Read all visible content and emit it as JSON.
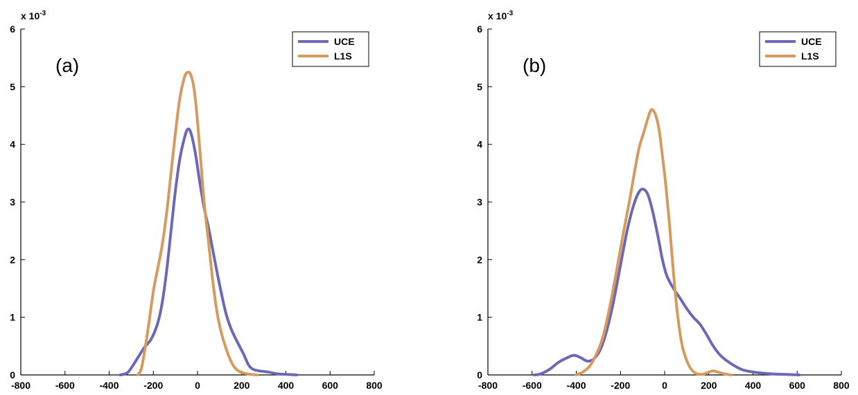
{
  "colors": {
    "UCE": "#6b68b8",
    "L1S": "#d59a5e",
    "axis": "#000000"
  },
  "chart_data": [
    {
      "type": "line",
      "panel_label": "(a)",
      "xlim": [
        -800,
        800
      ],
      "ylim": [
        0,
        6
      ],
      "x_ticks": [
        -800,
        -600,
        -400,
        -200,
        0,
        200,
        400,
        600,
        800
      ],
      "x_tick_labels": [
        "-800",
        "-600",
        "-400",
        "-200",
        "0",
        "200",
        "400",
        "600",
        "800"
      ],
      "y_ticks": [
        0,
        1,
        2,
        3,
        4,
        5,
        6
      ],
      "y_tick_labels": [
        "0",
        "1",
        "2",
        "3",
        "4",
        "5",
        "6"
      ],
      "y_exponent_base": "x 10",
      "y_exponent_power": "-3",
      "legend_position": "top-right",
      "grid": false,
      "series": [
        {
          "name": "UCE",
          "color": "#6b68b8",
          "points": [
            [
              -350,
              0
            ],
            [
              -320,
              0.03
            ],
            [
              -300,
              0.12
            ],
            [
              -270,
              0.3
            ],
            [
              -240,
              0.48
            ],
            [
              -210,
              0.62
            ],
            [
              -180,
              0.9
            ],
            [
              -160,
              1.25
            ],
            [
              -140,
              1.8
            ],
            [
              -120,
              2.5
            ],
            [
              -100,
              3.2
            ],
            [
              -80,
              3.75
            ],
            [
              -60,
              4.1
            ],
            [
              -45,
              4.26
            ],
            [
              -30,
              4.2
            ],
            [
              -10,
              3.85
            ],
            [
              10,
              3.35
            ],
            [
              30,
              2.9
            ],
            [
              50,
              2.55
            ],
            [
              70,
              2.15
            ],
            [
              90,
              1.75
            ],
            [
              110,
              1.38
            ],
            [
              130,
              1.05
            ],
            [
              150,
              0.82
            ],
            [
              170,
              0.65
            ],
            [
              190,
              0.5
            ],
            [
              210,
              0.35
            ],
            [
              230,
              0.18
            ],
            [
              250,
              0.1
            ],
            [
              280,
              0.07
            ],
            [
              320,
              0.05
            ],
            [
              360,
              0.02
            ],
            [
              400,
              0.01
            ],
            [
              450,
              0.0
            ]
          ]
        },
        {
          "name": "L1S",
          "color": "#d59a5e",
          "points": [
            [
              -270,
              0
            ],
            [
              -255,
              0.1
            ],
            [
              -240,
              0.4
            ],
            [
              -220,
              0.9
            ],
            [
              -200,
              1.45
            ],
            [
              -180,
              1.85
            ],
            [
              -160,
              2.25
            ],
            [
              -140,
              2.8
            ],
            [
              -120,
              3.5
            ],
            [
              -100,
              4.2
            ],
            [
              -80,
              4.8
            ],
            [
              -60,
              5.15
            ],
            [
              -45,
              5.25
            ],
            [
              -30,
              5.2
            ],
            [
              -15,
              4.95
            ],
            [
              0,
              4.4
            ],
            [
              15,
              3.7
            ],
            [
              30,
              3.0
            ],
            [
              50,
              2.3
            ],
            [
              70,
              1.6
            ],
            [
              90,
              1.05
            ],
            [
              110,
              0.7
            ],
            [
              130,
              0.45
            ],
            [
              150,
              0.25
            ],
            [
              170,
              0.12
            ],
            [
              190,
              0.06
            ],
            [
              210,
              0.03
            ],
            [
              240,
              0.01
            ],
            [
              270,
              0.0
            ]
          ]
        }
      ]
    },
    {
      "type": "line",
      "panel_label": "(b)",
      "xlim": [
        -800,
        800
      ],
      "ylim": [
        0,
        6
      ],
      "x_ticks": [
        -800,
        -600,
        -400,
        -200,
        0,
        200,
        400,
        600,
        800
      ],
      "x_tick_labels": [
        "-800",
        "-600",
        "-400",
        "-200",
        "0",
        "200",
        "400",
        "600",
        "800"
      ],
      "y_ticks": [
        0,
        1,
        2,
        3,
        4,
        5,
        6
      ],
      "y_tick_labels": [
        "0",
        "1",
        "2",
        "3",
        "4",
        "5",
        "6"
      ],
      "y_exponent_base": "x 10",
      "y_exponent_power": "-3",
      "legend_position": "top-right",
      "grid": false,
      "series": [
        {
          "name": "UCE",
          "color": "#6b68b8",
          "points": [
            [
              -590,
              0
            ],
            [
              -560,
              0.02
            ],
            [
              -520,
              0.1
            ],
            [
              -480,
              0.22
            ],
            [
              -440,
              0.3
            ],
            [
              -410,
              0.34
            ],
            [
              -380,
              0.3
            ],
            [
              -350,
              0.24
            ],
            [
              -320,
              0.28
            ],
            [
              -290,
              0.45
            ],
            [
              -260,
              0.8
            ],
            [
              -230,
              1.3
            ],
            [
              -200,
              1.9
            ],
            [
              -170,
              2.5
            ],
            [
              -140,
              2.95
            ],
            [
              -115,
              3.18
            ],
            [
              -95,
              3.22
            ],
            [
              -75,
              3.12
            ],
            [
              -55,
              2.85
            ],
            [
              -30,
              2.4
            ],
            [
              -10,
              2.0
            ],
            [
              10,
              1.72
            ],
            [
              40,
              1.5
            ],
            [
              70,
              1.33
            ],
            [
              100,
              1.15
            ],
            [
              130,
              1.0
            ],
            [
              160,
              0.88
            ],
            [
              190,
              0.7
            ],
            [
              220,
              0.5
            ],
            [
              250,
              0.35
            ],
            [
              280,
              0.25
            ],
            [
              320,
              0.15
            ],
            [
              360,
              0.08
            ],
            [
              420,
              0.04
            ],
            [
              480,
              0.02
            ],
            [
              540,
              0.01
            ],
            [
              610,
              0.0
            ]
          ]
        },
        {
          "name": "L1S",
          "color": "#d59a5e",
          "points": [
            [
              -400,
              0
            ],
            [
              -370,
              0.05
            ],
            [
              -340,
              0.15
            ],
            [
              -310,
              0.35
            ],
            [
              -280,
              0.65
            ],
            [
              -250,
              1.15
            ],
            [
              -220,
              1.75
            ],
            [
              -190,
              2.4
            ],
            [
              -160,
              3.0
            ],
            [
              -135,
              3.55
            ],
            [
              -115,
              3.95
            ],
            [
              -95,
              4.2
            ],
            [
              -80,
              4.4
            ],
            [
              -65,
              4.57
            ],
            [
              -55,
              4.6
            ],
            [
              -40,
              4.5
            ],
            [
              -25,
              4.25
            ],
            [
              -10,
              3.8
            ],
            [
              5,
              3.3
            ],
            [
              20,
              2.7
            ],
            [
              35,
              2.0
            ],
            [
              50,
              1.35
            ],
            [
              65,
              0.85
            ],
            [
              80,
              0.5
            ],
            [
              100,
              0.25
            ],
            [
              120,
              0.1
            ],
            [
              140,
              0.03
            ],
            [
              160,
              0.01
            ],
            [
              180,
              0.02
            ],
            [
              200,
              0.05
            ],
            [
              220,
              0.07
            ],
            [
              240,
              0.05
            ],
            [
              270,
              0.02
            ],
            [
              300,
              0.0
            ]
          ]
        }
      ]
    }
  ]
}
